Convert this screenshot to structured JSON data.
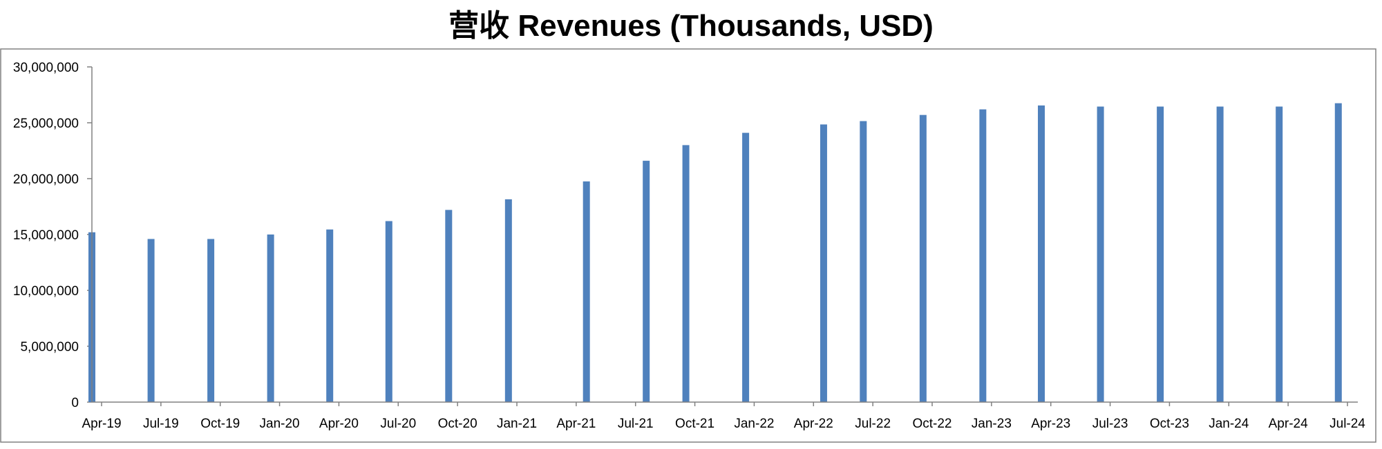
{
  "chart_data": {
    "type": "bar",
    "title": "营收 Revenues (Thousands, USD)",
    "xlabel": "",
    "ylabel": "",
    "ylim": [
      0,
      30000000
    ],
    "yticks": [
      0,
      5000000,
      10000000,
      15000000,
      20000000,
      25000000,
      30000000
    ],
    "ytick_labels": [
      "0",
      "5,000,000",
      "10,000,000",
      "15,000,000",
      "20,000,000",
      "25,000,000",
      "30,000,000"
    ],
    "x_tick_labels": [
      "Apr-19",
      "Jul-19",
      "Oct-19",
      "Jan-20",
      "Apr-20",
      "Jul-20",
      "Oct-20",
      "Jan-21",
      "Apr-21",
      "Jul-21",
      "Oct-21",
      "Jan-22",
      "Apr-22",
      "Jul-22",
      "Oct-22",
      "Jan-23",
      "Apr-23",
      "Jul-23",
      "Oct-23",
      "Jan-24",
      "Apr-24",
      "Jul-24"
    ],
    "x_range": [
      "2019-04-01",
      "2024-07-31"
    ],
    "grid": false,
    "legend": "none",
    "series": [
      {
        "color": "#4F81BD",
        "points": [
          {
            "x": "2019-04-01",
            "y": 15200000
          },
          {
            "x": "2019-07-01",
            "y": 14600000
          },
          {
            "x": "2019-10-01",
            "y": 14600000
          },
          {
            "x": "2020-01-01",
            "y": 15000000
          },
          {
            "x": "2020-04-01",
            "y": 15450000
          },
          {
            "x": "2020-07-01",
            "y": 16200000
          },
          {
            "x": "2020-10-01",
            "y": 17200000
          },
          {
            "x": "2021-01-01",
            "y": 18150000
          },
          {
            "x": "2021-05-01",
            "y": 19750000
          },
          {
            "x": "2021-08-01",
            "y": 21600000
          },
          {
            "x": "2021-10-01",
            "y": 23000000
          },
          {
            "x": "2022-01-01",
            "y": 24100000
          },
          {
            "x": "2022-05-01",
            "y": 24850000
          },
          {
            "x": "2022-07-01",
            "y": 25150000
          },
          {
            "x": "2022-10-01",
            "y": 25700000
          },
          {
            "x": "2023-01-01",
            "y": 26200000
          },
          {
            "x": "2023-04-01",
            "y": 26550000
          },
          {
            "x": "2023-07-01",
            "y": 26450000
          },
          {
            "x": "2023-10-01",
            "y": 26450000
          },
          {
            "x": "2024-01-01",
            "y": 26450000
          },
          {
            "x": "2024-04-01",
            "y": 26450000
          },
          {
            "x": "2024-07-01",
            "y": 26750000
          }
        ]
      }
    ]
  }
}
